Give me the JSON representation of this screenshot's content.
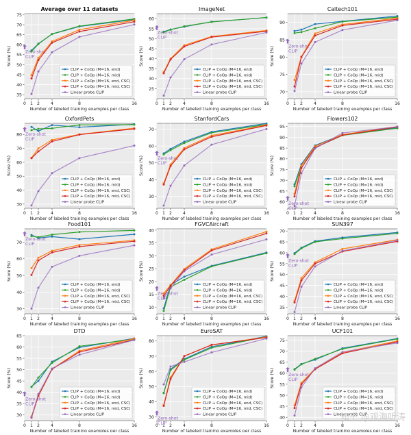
{
  "styles": {
    "series_colors": [
      "#1f77b4",
      "#2ca02c",
      "#ff7f0e",
      "#d62728",
      "#9467bd"
    ],
    "plot_bg": "#ebebeb",
    "grid_color": "#ffffff",
    "zero_shot_color": "#9467bd"
  },
  "zero_shot_label": "Zero-shot\nCLIP",
  "legend_labels_standard": [
    "CLIP + CoOp (M=16, end)",
    "CLIP + CoOp (M=16, mid)",
    "CLIP + CoOp (M=16, end, CSC)",
    "CLIP + CoOp (M=16, mid, CSC)",
    "Linear probe CLIP"
  ],
  "watermark": "知乎 @观海听涛",
  "chart_data": [
    {
      "type": "line",
      "title": "Average over 11 datasets",
      "title_bold": true,
      "xlabel": "Number of labeled training examples per class",
      "ylabel": "Score (%)",
      "x": [
        1,
        2,
        4,
        8,
        16
      ],
      "xticks": [
        0,
        1,
        2,
        4,
        8,
        16
      ],
      "xlim": [
        0,
        16
      ],
      "yticks": [
        35,
        40,
        45,
        50,
        55,
        60,
        65,
        70,
        75
      ],
      "ylim": [
        33,
        75.5
      ],
      "zero_shot": 58.8,
      "legend": "lower right",
      "series": [
        {
          "name": "CLIP + CoOp (M=16, end)",
          "values": [
            57.1,
            60.5,
            65.3,
            69.1,
            72.6
          ]
        },
        {
          "name": "CLIP + CoOp (M=16, mid)",
          "values": [
            56.6,
            60.3,
            65.4,
            69.3,
            72.9
          ]
        },
        {
          "name": "CLIP + CoOp (M=16, end, CSC)",
          "values": [
            44.8,
            53.4,
            61.6,
            67.5,
            72.2
          ]
        },
        {
          "name": "CLIP + CoOp (M=16, mid, CSC)",
          "values": [
            43.1,
            52.3,
            61.0,
            66.6,
            71.5
          ]
        },
        {
          "name": "Linear probe CLIP",
          "values": [
            35.3,
            46.6,
            56.2,
            63.9,
            70.1
          ]
        }
      ]
    },
    {
      "type": "line",
      "title": "ImageNet",
      "title_bold": false,
      "xlabel": "Number of labeled training examples per class",
      "ylabel": "Score (%)",
      "x": [
        1,
        2,
        4,
        8,
        16
      ],
      "xticks": [
        0,
        1,
        2,
        4,
        8,
        16
      ],
      "xlim": [
        0,
        16
      ],
      "yticks": [
        25,
        30,
        35,
        40,
        45,
        50,
        55,
        60
      ],
      "ylim": [
        20,
        62.5
      ],
      "zero_shot": 55.4,
      "legend": "lower right",
      "series": [
        {
          "name": "CLIP + CoOp (M=16, end)",
          "values": [
            53.5,
            54.6,
            56.0,
            58.5,
            60.5
          ]
        },
        {
          "name": "CLIP + CoOp (M=16, mid)",
          "values": [
            53.2,
            54.5,
            56.2,
            58.4,
            60.6
          ]
        },
        {
          "name": "CLIP + CoOp (M=16, end, CSC)",
          "values": [
            33.3,
            40.0,
            46.7,
            51.1,
            54.1
          ]
        },
        {
          "name": "CLIP + CoOp (M=16, mid, CSC)",
          "values": [
            32.7,
            39.6,
            46.1,
            50.8,
            53.7
          ]
        },
        {
          "name": "Linear probe CLIP",
          "values": [
            21.5,
            30.6,
            39.7,
            47.1,
            53.1
          ]
        }
      ]
    },
    {
      "type": "line",
      "title": "Caltech101",
      "title_bold": false,
      "xlabel": "Number of labeled training examples per class",
      "ylabel": "Score (%)",
      "x": [
        1,
        2,
        4,
        8,
        16
      ],
      "xticks": [
        0,
        1,
        2,
        4,
        8,
        16
      ],
      "xlim": [
        0,
        16
      ],
      "yticks": [
        70,
        75,
        80,
        85,
        90
      ],
      "ylim": [
        68,
        92.5
      ],
      "zero_shot": 84.5,
      "legend": "lower right",
      "series": [
        {
          "name": "CLIP + CoOp (M=16, end)",
          "values": [
            87.5,
            87.9,
            89.5,
            90.3,
            91.8
          ]
        },
        {
          "name": "CLIP + CoOp (M=16, mid)",
          "values": [
            86.9,
            87.2,
            88.3,
            90.2,
            91.5
          ]
        },
        {
          "name": "CLIP + CoOp (M=16, end, CSC)",
          "values": [
            73.4,
            80.1,
            86.8,
            89.4,
            91.2
          ]
        },
        {
          "name": "CLIP + CoOp (M=16, mid, CSC)",
          "values": [
            71.5,
            80.0,
            86.2,
            89.1,
            90.9
          ]
        },
        {
          "name": "Linear probe CLIP",
          "values": [
            70.2,
            78.1,
            84.3,
            87.8,
            90.6
          ]
        }
      ]
    },
    {
      "type": "line",
      "title": "OxfordPets",
      "title_bold": false,
      "xlabel": "Number of labeled training examples per class",
      "ylabel": "Score (%)",
      "x": [
        1,
        2,
        4,
        8,
        16
      ],
      "xticks": [
        0,
        1,
        2,
        4,
        8,
        16
      ],
      "xlim": [
        0,
        16
      ],
      "yticks": [
        30,
        40,
        50,
        60,
        70,
        80
      ],
      "ylim": [
        27,
        88
      ],
      "zero_shot": 83.5,
      "legend": "lower right",
      "series": [
        {
          "name": "CLIP + CoOp (M=16, end)",
          "values": [
            85.4,
            82.4,
            86.7,
            85.2,
            87.3
          ]
        },
        {
          "name": "CLIP + CoOp (M=16, mid)",
          "values": [
            83.1,
            84.0,
            84.4,
            86.8,
            87.0
          ]
        },
        {
          "name": "CLIP + CoOp (M=16, end, CSC)",
          "values": [
            63.2,
            70.0,
            76.1,
            80.1,
            84.5
          ]
        },
        {
          "name": "CLIP + CoOp (M=16, mid, CSC)",
          "values": [
            63.0,
            67.8,
            75.0,
            79.9,
            84.0
          ]
        },
        {
          "name": "Linear probe CLIP",
          "values": [
            29.0,
            39.3,
            52.2,
            63.0,
            72.0
          ]
        }
      ]
    },
    {
      "type": "line",
      "title": "StanfordCars",
      "title_bold": false,
      "xlabel": "Number of labeled training examples per class",
      "ylabel": "Score (%)",
      "x": [
        1,
        2,
        4,
        8,
        16
      ],
      "xticks": [
        0,
        1,
        2,
        4,
        8,
        16
      ],
      "xlim": [
        0,
        16
      ],
      "yticks": [
        30,
        40,
        50,
        60,
        70
      ],
      "ylim": [
        23,
        73.5
      ],
      "zero_shot": 55.6,
      "legend": "lower right",
      "series": [
        {
          "name": "CLIP + CoOp (M=16, end)",
          "values": [
            55.6,
            58.3,
            62.6,
            68.4,
            73.4
          ]
        },
        {
          "name": "CLIP + CoOp (M=16, mid)",
          "values": [
            55.0,
            57.5,
            61.8,
            67.9,
            72.8
          ]
        },
        {
          "name": "CLIP + CoOp (M=16, end, CSC)",
          "values": [
            37.8,
            49.0,
            58.8,
            66.2,
            72.5
          ]
        },
        {
          "name": "CLIP + CoOp (M=16, mid, CSC)",
          "values": [
            37.1,
            48.1,
            58.0,
            65.5,
            72.2
          ]
        },
        {
          "name": "Linear probe CLIP",
          "values": [
            24.6,
            36.4,
            48.4,
            60.8,
            70.1
          ]
        }
      ]
    },
    {
      "type": "line",
      "title": "Flowers102",
      "title_bold": false,
      "xlabel": "Number of labeled training examples per class",
      "ylabel": "Score (%)",
      "x": [
        1,
        2,
        4,
        8,
        16
      ],
      "xticks": [
        0,
        1,
        2,
        4,
        8,
        16
      ],
      "xlim": [
        0,
        16
      ],
      "yticks": [
        60,
        65,
        70,
        75,
        80,
        85,
        90,
        95
      ],
      "ylim": [
        57,
        96.5
      ],
      "zero_shot": 61.5,
      "legend": "lower right",
      "series": [
        {
          "name": "CLIP + CoOp (M=16, end)",
          "values": [
            68.1,
            77.5,
            86.2,
            91.2,
            94.5
          ]
        },
        {
          "name": "CLIP + CoOp (M=16, mid)",
          "values": [
            67.2,
            76.8,
            85.2,
            90.9,
            94.2
          ]
        },
        {
          "name": "CLIP + CoOp (M=16, end, CSC)",
          "values": [
            63.7,
            76.8,
            85.8,
            91.2,
            95.0
          ]
        },
        {
          "name": "CLIP + CoOp (M=16, mid, CSC)",
          "values": [
            62.5,
            75.7,
            85.2,
            91.0,
            94.8
          ]
        },
        {
          "name": "Linear probe CLIP",
          "values": [
            58.1,
            73.3,
            84.8,
            92.0,
            94.9
          ]
        }
      ]
    },
    {
      "type": "line",
      "title": "Food101",
      "title_bold": false,
      "xlabel": "Number of labeled training examples per class",
      "ylabel": "Score (%)",
      "x": [
        1,
        2,
        4,
        8,
        16
      ],
      "xticks": [
        0,
        1,
        2,
        4,
        8,
        16
      ],
      "xlim": [
        0,
        16
      ],
      "yticks": [
        30,
        40,
        50,
        60,
        70
      ],
      "ylim": [
        27,
        78
      ],
      "zero_shot": 74.8,
      "legend": "lower right",
      "series": [
        {
          "name": "CLIP + CoOp (M=16, end)",
          "values": [
            74.3,
            72.5,
            73.3,
            71.8,
            74.7
          ]
        },
        {
          "name": "CLIP + CoOp (M=16, mid)",
          "values": [
            73.6,
            73.0,
            74.5,
            76.1,
            77.0
          ]
        },
        {
          "name": "CLIP + CoOp (M=16, end, CSC)",
          "values": [
            54.4,
            60.6,
            64.8,
            68.3,
            71.1
          ]
        },
        {
          "name": "CLIP + CoOp (M=16, mid, CSC)",
          "values": [
            50.3,
            59.0,
            63.8,
            67.3,
            70.5
          ]
        },
        {
          "name": "Linear probe CLIP",
          "values": [
            30.1,
            42.6,
            55.2,
            61.8,
            68.1
          ]
        }
      ]
    },
    {
      "type": "line",
      "title": "FGVCAircraft",
      "title_bold": false,
      "xlabel": "Number of labeled training examples per class",
      "ylabel": "Score (%)",
      "x": [
        1,
        2,
        4,
        8,
        16
      ],
      "xticks": [
        0,
        1,
        2,
        4,
        8,
        16
      ],
      "xlim": [
        0,
        16
      ],
      "yticks": [
        10,
        15,
        20,
        25,
        30,
        35,
        40
      ],
      "ylim": [
        7.5,
        40.5
      ],
      "zero_shot": 17.2,
      "legend": "lower right",
      "series": [
        {
          "name": "CLIP + CoOp (M=16, end)",
          "values": [
            9.6,
            18.7,
            21.9,
            26.1,
            31.3
          ]
        },
        {
          "name": "CLIP + CoOp (M=16, mid)",
          "values": [
            8.6,
            17.9,
            20.7,
            25.9,
            31.0
          ]
        },
        {
          "name": "CLIP + CoOp (M=16, end, CSC)",
          "values": [
            15.4,
            18.6,
            24.9,
            32.5,
            39.4
          ]
        },
        {
          "name": "CLIP + CoOp (M=16, mid, CSC)",
          "values": [
            14.5,
            18.3,
            24.4,
            32.1,
            38.7
          ]
        },
        {
          "name": "Linear probe CLIP",
          "values": [
            13.6,
            17.3,
            24.0,
            30.5,
            36.4
          ]
        }
      ]
    },
    {
      "type": "line",
      "title": "SUN397",
      "title_bold": false,
      "xlabel": "Number of labeled training examples per class",
      "ylabel": "Score (%)",
      "x": [
        1,
        2,
        4,
        8,
        16
      ],
      "xticks": [
        0,
        1,
        2,
        4,
        8,
        16
      ],
      "xlim": [
        0,
        16
      ],
      "yticks": [
        35,
        40,
        45,
        50,
        55,
        60,
        65,
        70
      ],
      "ylim": [
        32,
        71
      ],
      "zero_shot": 58.5,
      "legend": "lower right",
      "series": [
        {
          "name": "CLIP + CoOp (M=16, end)",
          "values": [
            59.8,
            62.3,
            65.3,
            67.0,
            69.3
          ]
        },
        {
          "name": "CLIP + CoOp (M=16, mid)",
          "values": [
            59.4,
            62.0,
            65.0,
            66.5,
            68.9
          ]
        },
        {
          "name": "CLIP + CoOp (M=16, end, CSC)",
          "values": [
            37.9,
            48.4,
            55.6,
            61.8,
            66.0
          ]
        },
        {
          "name": "CLIP + CoOp (M=16, mid, CSC)",
          "values": [
            37.2,
            47.3,
            55.0,
            60.6,
            65.2
          ]
        },
        {
          "name": "Linear probe CLIP",
          "values": [
            32.8,
            44.4,
            53.7,
            60.9,
            65.7
          ]
        }
      ]
    },
    {
      "type": "line",
      "title": "DTD",
      "title_bold": false,
      "xlabel": "Number of labeled training examples per class",
      "ylabel": "Score (%)",
      "x": [
        1,
        2,
        4,
        8,
        16
      ],
      "xticks": [
        0,
        1,
        2,
        4,
        8,
        16
      ],
      "xlim": [
        0,
        16
      ],
      "yticks": [
        30,
        35,
        40,
        45,
        50,
        55,
        60,
        65
      ],
      "ylim": [
        27.5,
        65
      ],
      "zero_shot": 39.2,
      "legend": "lower right",
      "series": [
        {
          "name": "CLIP + CoOp (M=16, end)",
          "values": [
            42.5,
            45.0,
            53.5,
            59.8,
            63.8
          ]
        },
        {
          "name": "CLIP + CoOp (M=16, mid)",
          "values": [
            42.3,
            46.5,
            53.0,
            60.3,
            63.5
          ]
        },
        {
          "name": "CLIP + CoOp (M=16, end, CSC)",
          "values": [
            29.4,
            38.3,
            50.3,
            58.3,
            63.7
          ]
        },
        {
          "name": "CLIP + CoOp (M=16, mid, CSC)",
          "values": [
            28.8,
            38.5,
            50.2,
            57.8,
            63.2
          ]
        },
        {
          "name": "Linear probe CLIP",
          "values": [
            29.0,
            39.2,
            50.5,
            56.6,
            63.1
          ]
        }
      ]
    },
    {
      "type": "line",
      "title": "EuroSAT",
      "title_bold": false,
      "xlabel": "Number of labeled training examples per class",
      "ylabel": "Score (%)",
      "x": [
        1,
        2,
        4,
        8,
        16
      ],
      "xticks": [
        0,
        1,
        2,
        4,
        8,
        16
      ],
      "xlim": [
        0,
        16
      ],
      "yticks": [
        30,
        40,
        50,
        60,
        70,
        80
      ],
      "ylim": [
        27.5,
        83.5
      ],
      "zero_shot": 32.3,
      "legend": "lower right",
      "series": [
        {
          "name": "CLIP + CoOp (M=16, end)",
          "values": [
            45.8,
            61.4,
            68.1,
            76.2,
            83.1
          ]
        },
        {
          "name": "CLIP + CoOp (M=16, mid)",
          "values": [
            45.6,
            60.8,
            67.6,
            75.5,
            82.8
          ]
        },
        {
          "name": "CLIP + CoOp (M=16, end, CSC)",
          "values": [
            37.8,
            56.0,
            70.1,
            77.3,
            82.6
          ]
        },
        {
          "name": "CLIP + CoOp (M=16, mid, CSC)",
          "values": [
            37.2,
            55.0,
            70.0,
            77.5,
            82.3
          ]
        },
        {
          "name": "Linear probe CLIP",
          "values": [
            51.4,
            63.2,
            66.2,
            72.5,
            81.6
          ]
        }
      ]
    },
    {
      "type": "line",
      "title": "UCF101",
      "title_bold": false,
      "xlabel": "Number of labeled training examples per class",
      "ylabel": "Score (%)",
      "x": [
        1,
        2,
        4,
        8,
        16
      ],
      "xticks": [
        0,
        1,
        2,
        4,
        8,
        16
      ],
      "xlim": [
        0,
        16
      ],
      "yticks": [
        40,
        45,
        50,
        55,
        60,
        65,
        70,
        75
      ],
      "ylim": [
        38.5,
        77
      ],
      "zero_shot": 61.5,
      "legend": "lower right",
      "series": [
        {
          "name": "CLIP + CoOp (M=16, end)",
          "values": [
            61.8,
            64.2,
            66.1,
            71.3,
            75.7
          ]
        },
        {
          "name": "CLIP + CoOp (M=16, mid)",
          "values": [
            61.6,
            64.0,
            66.5,
            71.0,
            75.5
          ]
        },
        {
          "name": "CLIP + CoOp (M=16, end, CSC)",
          "values": [
            45.4,
            55.6,
            62.1,
            69.4,
            74.6
          ]
        },
        {
          "name": "CLIP + CoOp (M=16, mid, CSC)",
          "values": [
            44.2,
            55.0,
            61.8,
            69.0,
            74.2
          ]
        },
        {
          "name": "Linear probe CLIP",
          "values": [
            40.8,
            53.6,
            62.2,
            69.6,
            73.7
          ]
        }
      ]
    }
  ]
}
